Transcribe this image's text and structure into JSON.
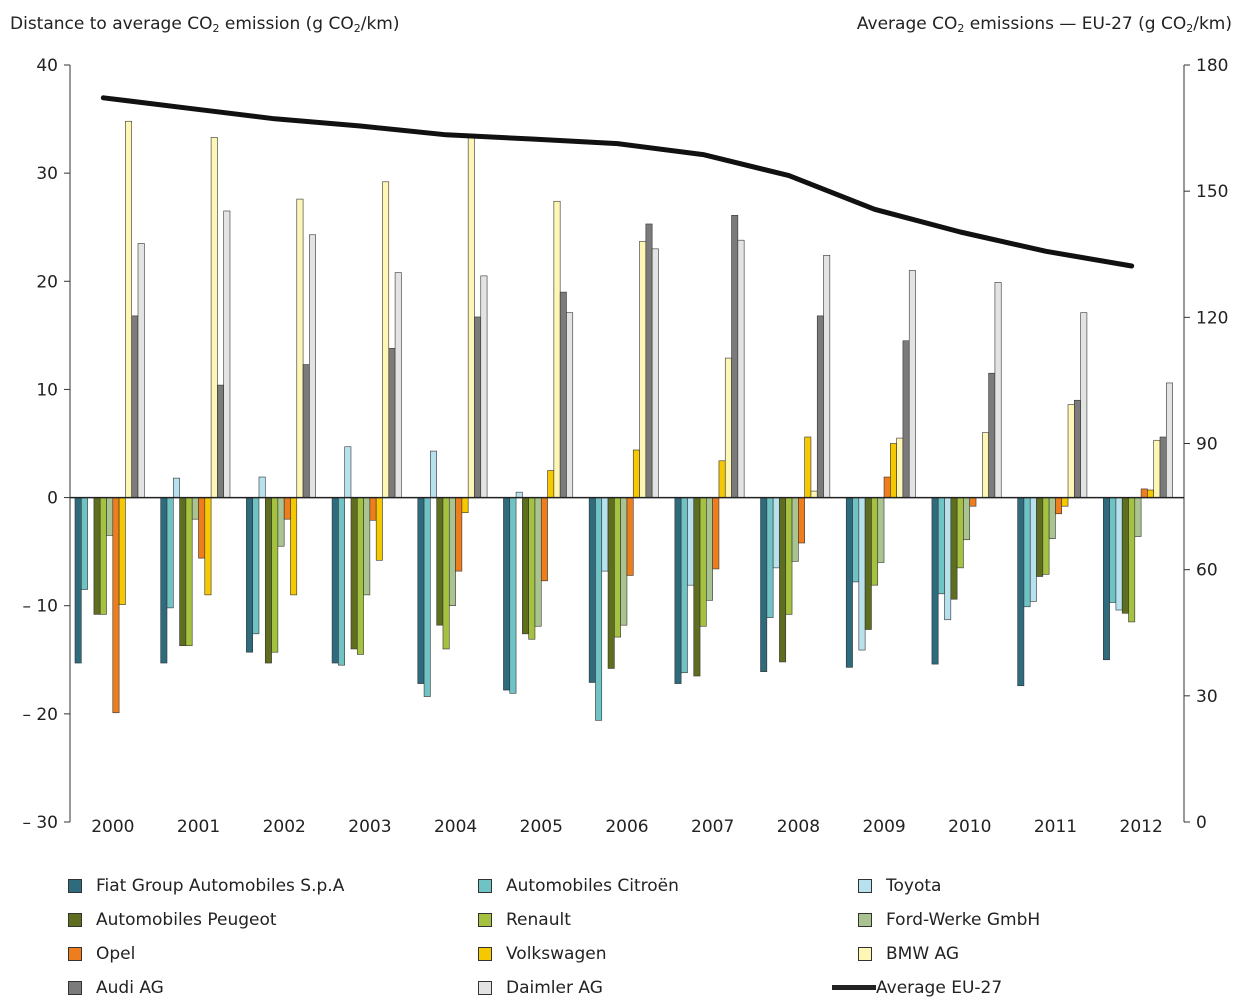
{
  "left_axis": {
    "title_prefix": "Distance to average CO",
    "title_sub1": "2",
    "title_mid": " emission (g CO",
    "title_sub2": "2",
    "title_suffix": "/km)"
  },
  "right_axis": {
    "title_prefix": "Average CO",
    "title_sub1": "2",
    "title_mid": " emissions — EU-27 (g CO",
    "title_sub2": "2",
    "title_suffix": "/km)"
  },
  "chart_data": {
    "type": "bar",
    "categories": [
      "2000",
      "2001",
      "2002",
      "2003",
      "2004",
      "2005",
      "2006",
      "2007",
      "2008",
      "2009",
      "2010",
      "2011",
      "2012"
    ],
    "ylim_left": [
      -30,
      40
    ],
    "ylim_right": [
      0,
      180
    ],
    "left_ticks": [
      -30,
      -20,
      -10,
      0,
      10,
      20,
      30,
      40
    ],
    "left_tick_labels": [
      "– 30",
      "– 20",
      "– 10",
      "0",
      "10",
      "20",
      "30",
      "40"
    ],
    "right_ticks": [
      0,
      30,
      60,
      90,
      120,
      150,
      180
    ],
    "right_tick_labels": [
      "0",
      "30",
      "60",
      "90",
      "120",
      "150",
      "180"
    ],
    "series": [
      {
        "name": "Fiat Group Automobiles S.p.A",
        "color": "#2e6b7d",
        "values": [
          -15.3,
          -15.3,
          -14.3,
          -15.3,
          -17.2,
          -17.8,
          -17.1,
          -17.2,
          -16.1,
          -15.7,
          -15.4,
          -17.4,
          -15.0
        ]
      },
      {
        "name": "Automobiles Citroën",
        "color": "#6fc3c5",
        "values": [
          -8.5,
          -10.2,
          -12.6,
          -15.5,
          -18.4,
          -18.1,
          -20.6,
          -16.2,
          -11.1,
          -7.8,
          -8.9,
          -10.1,
          -9.7
        ]
      },
      {
        "name": "Toyota",
        "color": "#b7e1ec",
        "values": [
          0,
          1.8,
          1.9,
          4.7,
          4.3,
          0.5,
          -6.8,
          -8.1,
          -6.5,
          -14.1,
          -11.3,
          -9.6,
          -10.4
        ]
      },
      {
        "name": "Automobiles Peugeot",
        "color": "#5e6e1e",
        "values": [
          -10.8,
          -13.7,
          -15.3,
          -14.0,
          -11.8,
          -12.6,
          -15.8,
          -16.5,
          -15.2,
          -12.2,
          -9.4,
          -7.3,
          -10.7
        ]
      },
      {
        "name": "Renault",
        "color": "#a4c23f",
        "values": [
          -10.8,
          -13.7,
          -14.3,
          -14.5,
          -14.0,
          -13.1,
          -12.9,
          -11.9,
          -10.8,
          -8.1,
          -6.5,
          -7.1,
          -11.5
        ]
      },
      {
        "name": "Ford-Werke GmbH",
        "color": "#a9c490",
        "values": [
          -3.5,
          -2.0,
          -4.5,
          -9.0,
          -10.0,
          -11.9,
          -11.8,
          -9.5,
          -5.9,
          -6.0,
          -3.9,
          -3.8,
          -3.6
        ]
      },
      {
        "name": "Opel",
        "color": "#ee7d1e",
        "values": [
          -19.9,
          -5.6,
          -2.0,
          -2.1,
          -6.8,
          -7.7,
          -7.2,
          -6.6,
          -4.2,
          1.9,
          -0.8,
          -1.5,
          0.8
        ]
      },
      {
        "name": "Volkswagen",
        "color": "#f5c800",
        "values": [
          -9.9,
          -9.0,
          -9.0,
          -5.8,
          -1.4,
          2.5,
          4.4,
          3.4,
          5.6,
          5.0,
          0,
          -0.8,
          0.7
        ]
      },
      {
        "name": "BMW AG",
        "color": "#fdf6b4",
        "values": [
          34.8,
          33.3,
          27.6,
          29.2,
          33.4,
          27.4,
          23.7,
          12.9,
          0.6,
          5.5,
          6.0,
          8.6,
          5.3
        ]
      },
      {
        "name": "Audi AG",
        "color": "#7b7b7b",
        "values": [
          16.8,
          10.4,
          12.3,
          13.8,
          16.7,
          19.0,
          25.3,
          26.1,
          16.8,
          14.5,
          11.5,
          9.0,
          5.6
        ]
      },
      {
        "name": "Daimler AG",
        "color": "#e3e3e3",
        "values": [
          23.5,
          26.5,
          24.3,
          20.8,
          20.5,
          17.1,
          23.0,
          23.8,
          22.4,
          21.0,
          19.9,
          17.1,
          10.6
        ]
      }
    ],
    "line_series": {
      "name": "Average EU-27",
      "axis": "right",
      "color": "#111111",
      "values": [
        172.2,
        169.7,
        167.2,
        165.5,
        163.4,
        162.4,
        161.3,
        158.7,
        153.7,
        145.7,
        140.3,
        135.7,
        132.2
      ]
    }
  }
}
